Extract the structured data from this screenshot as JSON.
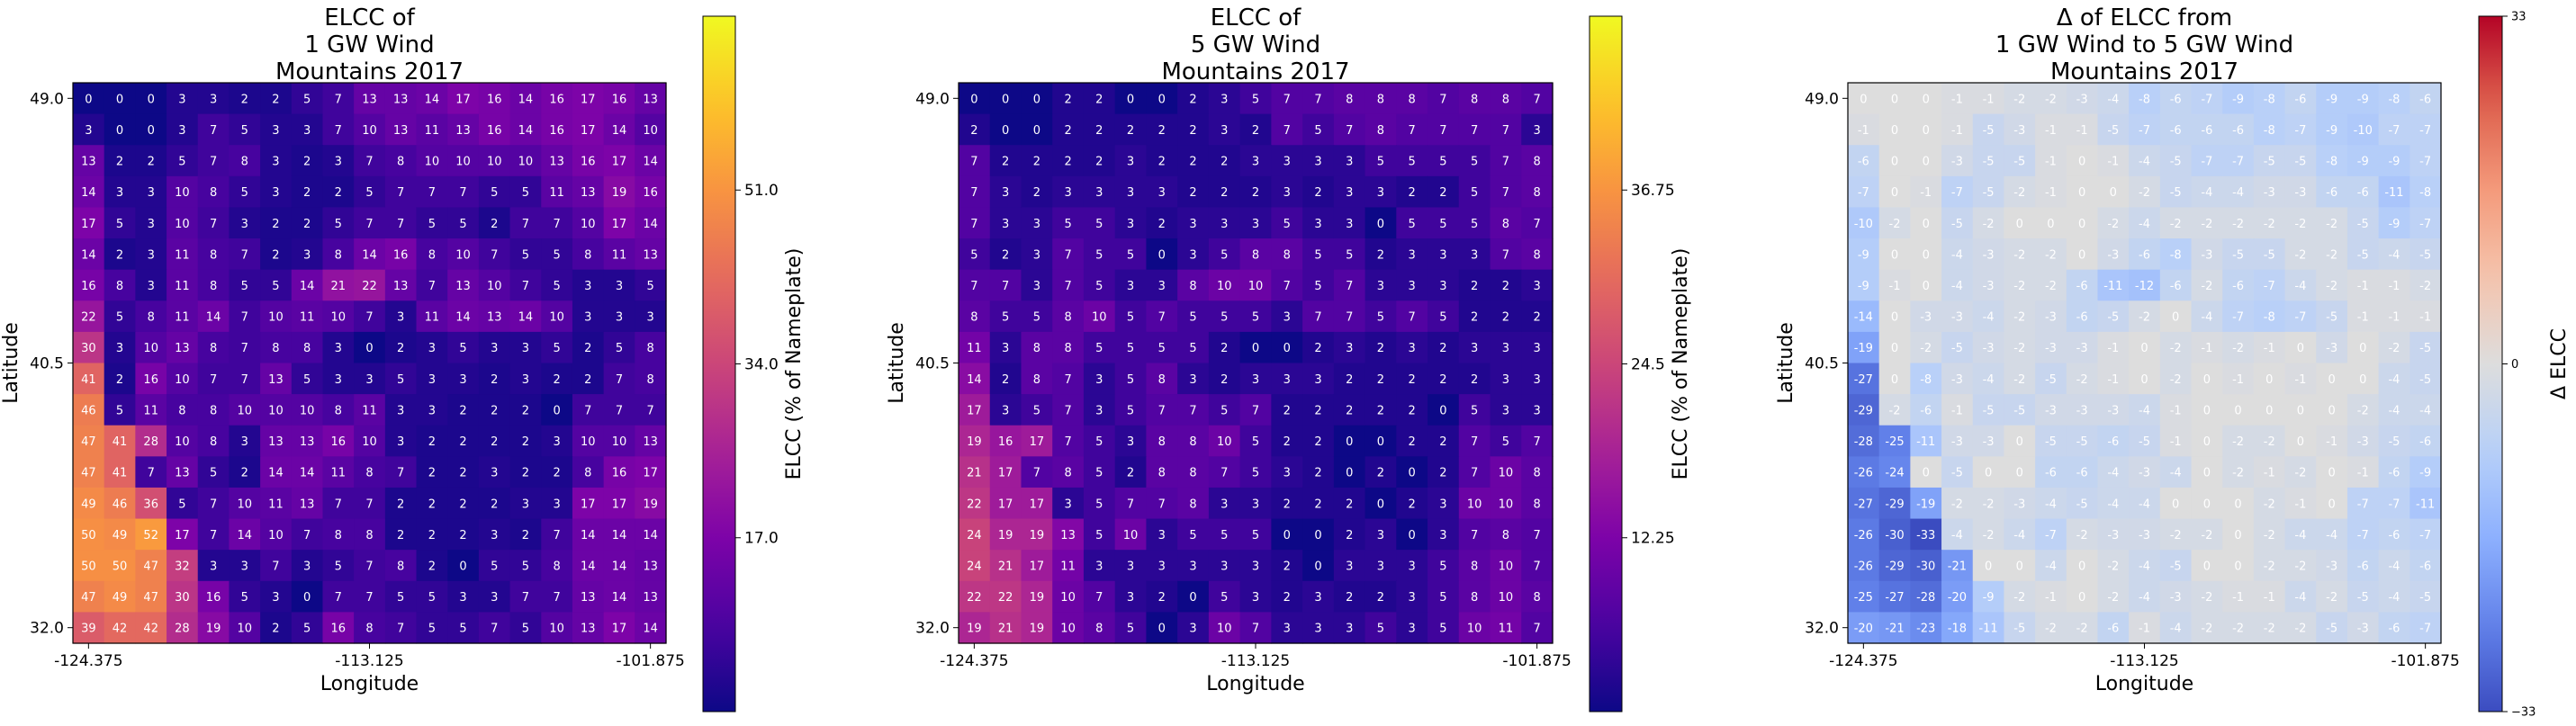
{
  "chart_data": [
    {
      "type": "heatmap",
      "title": [
        "ELCC of",
        "1 GW Wind",
        "Mountains 2017"
      ],
      "xlabel": "Longitude",
      "ylabel": "Latitude",
      "x_ticks": [
        "-124.375",
        "-113.125",
        "-101.875"
      ],
      "y_ticks": [
        "49.0",
        "40.5",
        "32.0"
      ],
      "colormap": "plasma",
      "vmin": 0,
      "vmax": 68,
      "colorbar_label": "ELCC (% of Nameplate)",
      "colorbar_ticks": [
        {
          "value": 17.0,
          "label": "17.0"
        },
        {
          "value": 34.0,
          "label": "34.0"
        },
        {
          "value": 51.0,
          "label": "51.0"
        }
      ],
      "values": [
        [
          0,
          0,
          0,
          3,
          3,
          2,
          2,
          5,
          7,
          13,
          13,
          14,
          17,
          16,
          14,
          16,
          17,
          16,
          13
        ],
        [
          3,
          0,
          0,
          3,
          7,
          5,
          3,
          3,
          7,
          10,
          13,
          11,
          13,
          16,
          14,
          16,
          17,
          14,
          10
        ],
        [
          13,
          2,
          2,
          5,
          7,
          8,
          3,
          2,
          3,
          7,
          8,
          10,
          10,
          10,
          10,
          13,
          16,
          17,
          14
        ],
        [
          14,
          3,
          3,
          10,
          8,
          5,
          3,
          2,
          2,
          5,
          7,
          7,
          7,
          5,
          5,
          11,
          13,
          19,
          16
        ],
        [
          17,
          5,
          3,
          10,
          7,
          3,
          2,
          2,
          5,
          7,
          7,
          5,
          5,
          2,
          7,
          7,
          10,
          17,
          14
        ],
        [
          14,
          2,
          3,
          11,
          8,
          7,
          2,
          3,
          8,
          14,
          16,
          8,
          10,
          7,
          5,
          5,
          8,
          11,
          13
        ],
        [
          16,
          8,
          3,
          11,
          8,
          5,
          5,
          14,
          21,
          22,
          13,
          7,
          13,
          10,
          7,
          5,
          3,
          3,
          5
        ],
        [
          22,
          5,
          8,
          11,
          14,
          7,
          10,
          11,
          10,
          7,
          3,
          11,
          14,
          13,
          14,
          10,
          3,
          3,
          3
        ],
        [
          30,
          3,
          10,
          13,
          8,
          7,
          8,
          8,
          3,
          0,
          2,
          3,
          5,
          3,
          3,
          5,
          2,
          5,
          8
        ],
        [
          41,
          2,
          16,
          10,
          7,
          7,
          13,
          5,
          3,
          3,
          5,
          3,
          3,
          2,
          3,
          2,
          2,
          7,
          8
        ],
        [
          46,
          5,
          11,
          8,
          8,
          10,
          10,
          10,
          8,
          11,
          3,
          3,
          2,
          2,
          2,
          0,
          7,
          7,
          7
        ],
        [
          47,
          41,
          28,
          10,
          8,
          3,
          13,
          13,
          16,
          10,
          3,
          2,
          2,
          2,
          2,
          3,
          10,
          10,
          13
        ],
        [
          47,
          41,
          7,
          13,
          5,
          2,
          14,
          14,
          11,
          8,
          7,
          2,
          2,
          3,
          2,
          2,
          8,
          16,
          17
        ],
        [
          49,
          46,
          36,
          5,
          7,
          10,
          11,
          13,
          7,
          7,
          2,
          2,
          2,
          2,
          3,
          3,
          17,
          17,
          19
        ],
        [
          50,
          49,
          52,
          17,
          7,
          14,
          10,
          7,
          8,
          8,
          2,
          2,
          2,
          3,
          2,
          7,
          14,
          14,
          14
        ],
        [
          50,
          50,
          47,
          32,
          3,
          3,
          7,
          3,
          5,
          7,
          8,
          2,
          0,
          5,
          5,
          8,
          14,
          14,
          13
        ],
        [
          47,
          49,
          47,
          30,
          16,
          5,
          3,
          0,
          7,
          7,
          5,
          5,
          3,
          3,
          7,
          7,
          13,
          14,
          13
        ],
        [
          39,
          42,
          42,
          28,
          19,
          10,
          2,
          5,
          16,
          8,
          7,
          5,
          5,
          7,
          5,
          10,
          13,
          17,
          14
        ]
      ]
    },
    {
      "type": "heatmap",
      "title": [
        "ELCC of",
        "5 GW Wind",
        "Mountains 2017"
      ],
      "xlabel": "Longitude",
      "ylabel": "Latitude",
      "x_ticks": [
        "-124.375",
        "-113.125",
        "-101.875"
      ],
      "y_ticks": [
        "49.0",
        "40.5",
        "32.0"
      ],
      "colormap": "plasma",
      "vmin": 0,
      "vmax": 49,
      "colorbar_label": "ELCC (% of Nameplate)",
      "colorbar_ticks": [
        {
          "value": 12.25,
          "label": "12.25"
        },
        {
          "value": 24.5,
          "label": "24.5"
        },
        {
          "value": 36.75,
          "label": "36.75"
        }
      ],
      "values": [
        [
          0,
          0,
          0,
          2,
          2,
          0,
          0,
          2,
          3,
          5,
          7,
          7,
          8,
          8,
          8,
          7,
          8,
          8,
          7
        ],
        [
          2,
          0,
          0,
          2,
          2,
          2,
          2,
          2,
          3,
          2,
          7,
          5,
          7,
          8,
          7,
          7,
          7,
          7,
          3
        ],
        [
          7,
          2,
          2,
          2,
          2,
          3,
          2,
          2,
          2,
          3,
          3,
          3,
          3,
          5,
          5,
          5,
          5,
          7,
          8
        ],
        [
          7,
          3,
          2,
          3,
          3,
          3,
          3,
          2,
          2,
          2,
          3,
          2,
          3,
          3,
          2,
          2,
          5,
          7,
          8
        ],
        [
          7,
          3,
          3,
          5,
          5,
          3,
          2,
          3,
          3,
          3,
          5,
          3,
          3,
          0,
          5,
          5,
          5,
          8,
          7
        ],
        [
          5,
          2,
          3,
          7,
          5,
          5,
          0,
          3,
          5,
          8,
          8,
          5,
          5,
          2,
          3,
          3,
          3,
          7,
          8
        ],
        [
          7,
          7,
          3,
          7,
          5,
          3,
          3,
          8,
          10,
          10,
          7,
          5,
          7,
          3,
          3,
          3,
          2,
          2,
          3
        ],
        [
          8,
          5,
          5,
          8,
          10,
          5,
          7,
          5,
          5,
          5,
          3,
          7,
          7,
          5,
          7,
          5,
          2,
          2,
          2
        ],
        [
          11,
          3,
          8,
          8,
          5,
          5,
          5,
          5,
          2,
          0,
          0,
          2,
          3,
          2,
          3,
          2,
          3,
          3,
          3
        ],
        [
          14,
          2,
          8,
          7,
          3,
          5,
          8,
          3,
          2,
          3,
          3,
          3,
          2,
          2,
          2,
          2,
          2,
          3,
          3
        ],
        [
          17,
          3,
          5,
          7,
          3,
          5,
          7,
          7,
          5,
          7,
          2,
          2,
          2,
          2,
          2,
          0,
          5,
          3,
          3
        ],
        [
          19,
          16,
          17,
          7,
          5,
          3,
          8,
          8,
          10,
          5,
          2,
          2,
          0,
          0,
          2,
          2,
          7,
          5,
          7
        ],
        [
          21,
          17,
          7,
          8,
          5,
          2,
          8,
          8,
          7,
          5,
          3,
          2,
          0,
          2,
          0,
          2,
          7,
          10,
          8
        ],
        [
          22,
          17,
          17,
          3,
          5,
          7,
          7,
          8,
          3,
          3,
          2,
          2,
          2,
          0,
          2,
          3,
          10,
          10,
          8
        ],
        [
          24,
          19,
          19,
          13,
          5,
          10,
          3,
          5,
          5,
          5,
          0,
          0,
          2,
          3,
          0,
          3,
          7,
          8,
          7
        ],
        [
          24,
          21,
          17,
          11,
          3,
          3,
          3,
          3,
          3,
          3,
          2,
          0,
          3,
          3,
          3,
          5,
          8,
          10,
          7
        ],
        [
          22,
          22,
          19,
          10,
          7,
          3,
          2,
          0,
          5,
          3,
          2,
          3,
          2,
          2,
          3,
          5,
          8,
          10,
          8
        ],
        [
          19,
          21,
          19,
          10,
          8,
          5,
          0,
          3,
          10,
          7,
          3,
          3,
          3,
          5,
          3,
          5,
          10,
          11,
          7
        ]
      ]
    },
    {
      "type": "heatmap",
      "title": [
        "Δ of ELCC from",
        "1 GW Wind to 5 GW Wind",
        "Mountains 2017"
      ],
      "xlabel": "Longitude",
      "ylabel": "Latitude",
      "x_ticks": [
        "-124.375",
        "-113.125",
        "-101.875"
      ],
      "y_ticks": [
        "49.0",
        "40.5",
        "32.0"
      ],
      "colormap": "coolwarm",
      "vmin": -33,
      "vmax": 33,
      "colorbar_label": "Δ ELCC",
      "colorbar_ticks": [
        {
          "value": 33,
          "label": "33"
        },
        {
          "value": 0,
          "label": "0"
        },
        {
          "value": -33,
          "label": "−33"
        }
      ],
      "values": [
        [
          0,
          0,
          0,
          -1,
          -1,
          -2,
          -2,
          -3,
          -4,
          -8,
          -6,
          -7,
          -9,
          -8,
          -6,
          -9,
          -9,
          -8,
          -6
        ],
        [
          -1,
          0,
          0,
          -1,
          -5,
          -3,
          -1,
          -1,
          -5,
          -7,
          -6,
          -6,
          -6,
          -8,
          -7,
          -9,
          -10,
          -7,
          -7
        ],
        [
          -6,
          0,
          0,
          -3,
          -5,
          -5,
          -1,
          0,
          -1,
          -4,
          -5,
          -7,
          -7,
          -5,
          -5,
          -8,
          -9,
          -9,
          -7
        ],
        [
          -7,
          0,
          -1,
          -7,
          -5,
          -2,
          -1,
          0,
          0,
          -2,
          -5,
          -4,
          -4,
          -3,
          -3,
          -6,
          -6,
          -11,
          -8
        ],
        [
          -10,
          -2,
          0,
          -5,
          -2,
          0,
          0,
          0,
          -2,
          -4,
          -2,
          -2,
          -2,
          -2,
          -2,
          -2,
          -5,
          -9,
          -7
        ],
        [
          -9,
          0,
          0,
          -4,
          -3,
          -2,
          -2,
          0,
          -3,
          -6,
          -8,
          -3,
          -5,
          -5,
          -2,
          -2,
          -5,
          -4,
          -5
        ],
        [
          -9,
          -1,
          0,
          -4,
          -3,
          -2,
          -2,
          -6,
          -11,
          -12,
          -6,
          -2,
          -6,
          -7,
          -4,
          -2,
          -1,
          -1,
          -2
        ],
        [
          -14,
          0,
          -3,
          -3,
          -4,
          -2,
          -3,
          -6,
          -5,
          -2,
          0,
          -4,
          -7,
          -8,
          -7,
          -5,
          -1,
          -1,
          -1
        ],
        [
          -19,
          0,
          -2,
          -5,
          -3,
          -2,
          -3,
          -3,
          -1,
          0,
          -2,
          -1,
          -2,
          -1,
          0,
          -3,
          0,
          -2,
          -5
        ],
        [
          -27,
          0,
          -8,
          -3,
          -4,
          -2,
          -5,
          -2,
          -1,
          0,
          -2,
          0,
          -1,
          0,
          -1,
          0,
          0,
          -4,
          -5
        ],
        [
          -29,
          -2,
          -6,
          -1,
          -5,
          -5,
          -3,
          -3,
          -3,
          -4,
          -1,
          0,
          0,
          0,
          0,
          0,
          -2,
          -4,
          -4
        ],
        [
          -28,
          -25,
          -11,
          -3,
          -3,
          0,
          -5,
          -5,
          -6,
          -5,
          -1,
          0,
          -2,
          -2,
          0,
          -1,
          -3,
          -5,
          -6
        ],
        [
          -26,
          -24,
          0,
          -5,
          0,
          0,
          -6,
          -6,
          -4,
          -3,
          -4,
          0,
          -2,
          -1,
          -2,
          0,
          -1,
          -6,
          -9
        ],
        [
          -27,
          -29,
          -19,
          -2,
          -2,
          -3,
          -4,
          -5,
          -4,
          -4,
          0,
          0,
          0,
          -2,
          -1,
          0,
          -7,
          -7,
          -11
        ],
        [
          -26,
          -30,
          -33,
          -4,
          -2,
          -4,
          -7,
          -2,
          -3,
          -3,
          -2,
          -2,
          0,
          -2,
          -4,
          -4,
          -7,
          -6,
          -7
        ],
        [
          -26,
          -29,
          -30,
          -21,
          0,
          0,
          -4,
          0,
          -2,
          -4,
          -5,
          0,
          0,
          -2,
          -2,
          -3,
          -6,
          -4,
          -6
        ],
        [
          -25,
          -27,
          -28,
          -20,
          -9,
          -2,
          -1,
          0,
          -2,
          -4,
          -3,
          -2,
          -1,
          -1,
          -4,
          -2,
          -5,
          -4,
          -5
        ],
        [
          -20,
          -21,
          -23,
          -18,
          -11,
          -5,
          -2,
          -2,
          -6,
          -1,
          -4,
          -2,
          -2,
          -2,
          -2,
          -5,
          -3,
          -6,
          -7
        ]
      ]
    }
  ]
}
